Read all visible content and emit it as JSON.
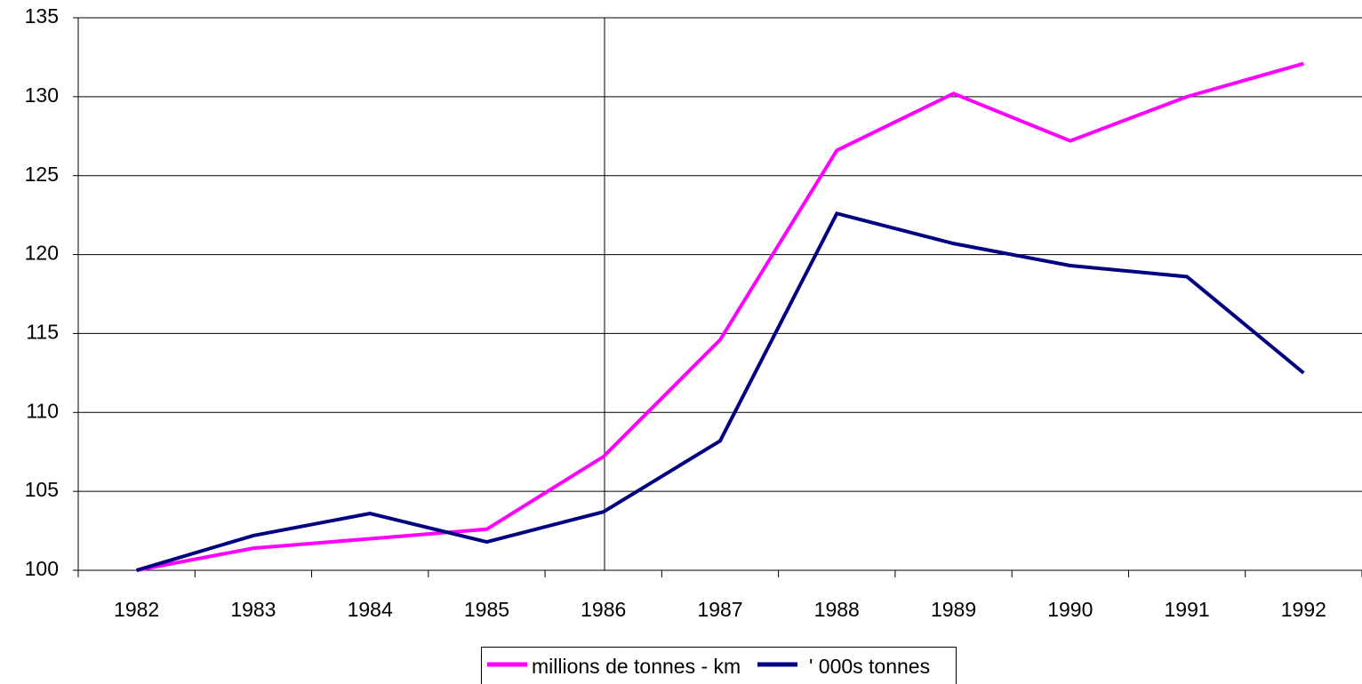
{
  "chart_data": {
    "type": "line",
    "categories": [
      "1982",
      "1983",
      "1984",
      "1985",
      "1986",
      "1987",
      "1988",
      "1989",
      "1990",
      "1991",
      "1992"
    ],
    "series": [
      {
        "name": "millions de tonnes - km",
        "color": "#ff00ff",
        "values": [
          100,
          101.4,
          102.0,
          102.6,
          107.2,
          114.6,
          126.6,
          130.2,
          127.2,
          130.0,
          132.1
        ]
      },
      {
        "name": "' 000s tonnes",
        "color": "#000080",
        "values": [
          100,
          102.2,
          103.6,
          101.8,
          103.7,
          108.2,
          122.6,
          120.7,
          119.3,
          118.6,
          112.5
        ]
      }
    ],
    "ylim": [
      100,
      135
    ],
    "yticks": [
      100,
      105,
      110,
      115,
      120,
      125,
      130,
      135
    ],
    "grid": true,
    "legend": "bottom"
  }
}
